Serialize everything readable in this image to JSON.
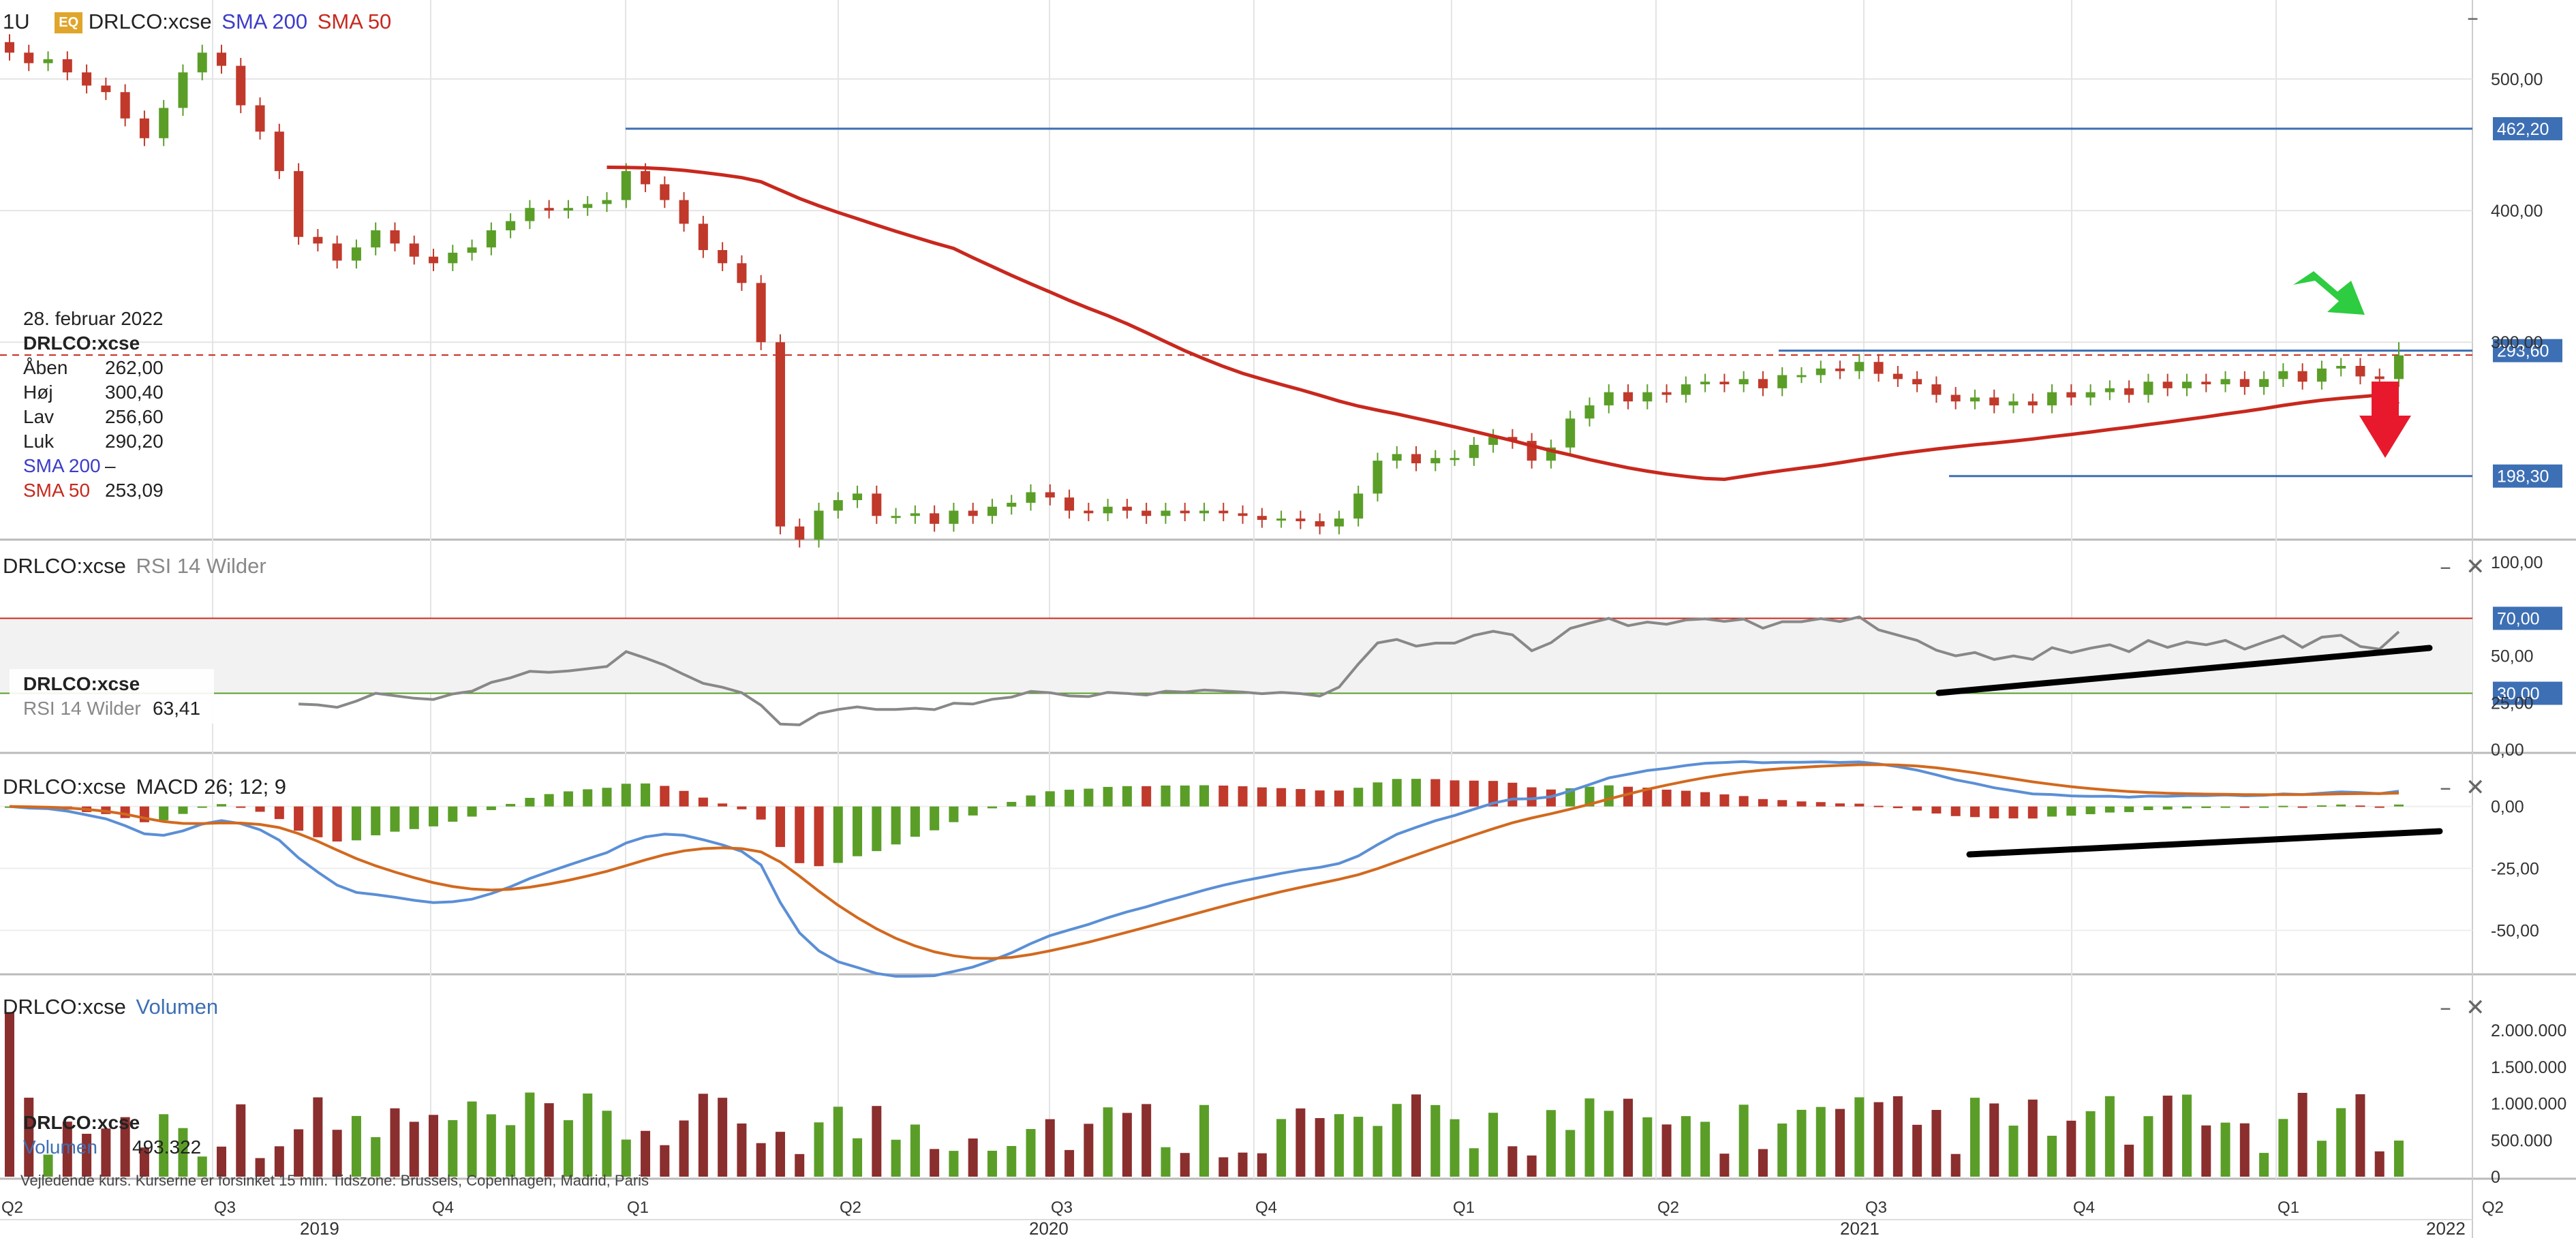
{
  "header": {
    "interval": "1U",
    "badge": "EQ",
    "symbol": "DRLCO:xcse",
    "sma200_label": "SMA 200",
    "sma50_label": "SMA 50",
    "colors": {
      "sma200": "#3c3cc8",
      "sma50": "#c8281e",
      "up": "#5a9e28",
      "down": "#c0392b",
      "badge": "#e0a52b"
    }
  },
  "info": {
    "date": "28. februar 2022",
    "symbol": "DRLCO:xcse",
    "rows": [
      {
        "label": "Åben",
        "value": "262,00"
      },
      {
        "label": "Høj",
        "value": "300,40"
      },
      {
        "label": "Lav",
        "value": "256,60"
      },
      {
        "label": "Luk",
        "value": "290,20"
      }
    ],
    "sma200": {
      "label": "SMA 200",
      "value": "–"
    },
    "sma50": {
      "label": "SMA 50",
      "value": "253,09"
    }
  },
  "price_axis": {
    "ticks": [
      "500,00",
      "400,00",
      "300,00"
    ],
    "levels": [
      {
        "label": "462,20",
        "value": 462.2,
        "color": "#3d6fb4"
      },
      {
        "label": "293,60",
        "value": 293.6,
        "color": "#3d6fb4"
      },
      {
        "label": "198,30",
        "value": 198.3,
        "color": "#3d6fb4"
      }
    ]
  },
  "rsi": {
    "header_symbol": "DRLCO:xcse",
    "header_label": "RSI 14 Wilder",
    "info_symbol": "DRLCO:xcse",
    "info_label": "RSI 14 Wilder",
    "info_value": "63,41",
    "ticks": [
      "100,00",
      "75,00",
      "50,00",
      "25,00",
      "0,00"
    ],
    "upper": {
      "label": "70,00",
      "value": 70
    },
    "lower": {
      "label": "30,00",
      "value": 30
    }
  },
  "macd": {
    "header_symbol": "DRLCO:xcse",
    "header_label": "MACD 26; 12; 9",
    "ticks": [
      "0,00",
      "-25,00",
      "-50,00"
    ]
  },
  "volume": {
    "header_symbol": "DRLCO:xcse",
    "header_label": "Volumen",
    "info_symbol": "DRLCO:xcse",
    "info_label": "Volumen",
    "info_value": "493.322",
    "ticks": [
      "2.000.000",
      "1.500.000",
      "1.000.000",
      "500.000",
      "0"
    ]
  },
  "x_axis": {
    "quarters": [
      "Q2",
      "Q3",
      "Q4",
      "Q1",
      "Q2",
      "Q3",
      "Q4",
      "Q1",
      "Q2",
      "Q3",
      "Q4",
      "Q1",
      "Q2"
    ],
    "years": [
      "2019",
      "2020",
      "2021",
      "2022"
    ]
  },
  "footer": "Vejledende kurs. Kurserne er forsinket 15 min.    Tidszone: Brussels, Copenhagen, Madrid, Paris",
  "chart_data": {
    "type": "candlestick",
    "interval": "weekly",
    "y_axis_price": [
      150,
      560
    ],
    "candles_close": [
      520,
      512,
      515,
      505,
      495,
      490,
      470,
      455,
      478,
      505,
      520,
      510,
      480,
      460,
      430,
      380,
      375,
      362,
      372,
      385,
      375,
      365,
      360,
      368,
      372,
      385,
      392,
      402,
      400,
      402,
      405,
      408,
      430,
      420,
      408,
      390,
      370,
      360,
      345,
      300,
      160,
      150,
      172,
      180,
      185,
      168,
      168,
      170,
      162,
      172,
      168,
      175,
      178,
      186,
      182,
      172,
      170,
      175,
      172,
      168,
      172,
      170,
      172,
      170,
      168,
      165,
      166,
      164,
      160,
      166,
      185,
      210,
      215,
      208,
      212,
      212,
      222,
      228,
      225,
      210,
      220,
      242,
      252,
      262,
      255,
      262,
      260,
      268,
      270,
      268,
      272,
      265,
      275,
      275,
      280,
      278,
      285,
      276,
      272,
      268,
      260,
      255,
      258,
      252,
      255,
      252,
      262,
      258,
      262,
      265,
      260,
      270,
      265,
      270,
      268,
      272,
      266,
      272,
      278,
      270,
      280,
      282,
      274,
      272,
      290
    ],
    "sma50": [
      null,
      null,
      null,
      null,
      null,
      null,
      null,
      null,
      null,
      null,
      null,
      null,
      null,
      null,
      null,
      null,
      null,
      null,
      null,
      null,
      null,
      null,
      null,
      null,
      null,
      null,
      null,
      null,
      null,
      null,
      null,
      null,
      null,
      null,
      null,
      null,
      null,
      null,
      null,
      null,
      null,
      null,
      null,
      null,
      null,
      null,
      null,
      null,
      null,
      null,
      null,
      null,
      null,
      null,
      null,
      null,
      null,
      null,
      null,
      null,
      null,
      null,
      null,
      null,
      null,
      null,
      null,
      null,
      null,
      null,
      null,
      null,
      null,
      null,
      null,
      null,
      null,
      null,
      null,
      null,
      null,
      null,
      null,
      null,
      null,
      null,
      null,
      null,
      null,
      null,
      null,
      null,
      null,
      null,
      null,
      null,
      null,
      null,
      null,
      null,
      null,
      null,
      null,
      null,
      null,
      null,
      null,
      null,
      null,
      null,
      null,
      null,
      null,
      null,
      null,
      null,
      null,
      null,
      null,
      null,
      null,
      null,
      null,
      null,
      253.09
    ],
    "rsi_last": 63.41,
    "rsi_levels": [
      30,
      70
    ],
    "y_axis_rsi": [
      0,
      100
    ],
    "y_axis_macd": [
      -65,
      12
    ],
    "y_axis_volume": [
      0,
      2300000
    ],
    "volume_last": 493322
  }
}
